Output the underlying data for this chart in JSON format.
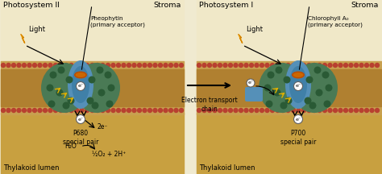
{
  "bg_color": "#f0ead0",
  "stroma_color": "#f0e8c8",
  "lumen_color": "#c8a040",
  "membrane_color": "#b08030",
  "membrane_tan": "#c8a050",
  "protein_green": "#4a7a55",
  "protein_green2": "#3d6648",
  "channel_blue": "#5590b8",
  "channel_blue2": "#4080a8",
  "dot_green": "#2a5a35",
  "red_dot": "#b84030",
  "orange_center": "#cc5500",
  "yellow_arrow": "#e0b000",
  "ps2_title": "Photosystem II",
  "ps1_title": "Photosystem I",
  "stroma_label": "Stroma",
  "lumen_label": "Thylakoid lumen",
  "light_label": "Light",
  "pheophytin_label": "Pheophytin\n(primary acceptor)",
  "chlorophyll_label": "Chlorophyll A₀\n(primary acceptor)",
  "p680_label": "P680\nspecial pair",
  "p700_label": "P700\nspecial pair",
  "water_label": "H₂O",
  "oxygen_label": "½O₂ + 2H⁺",
  "electron_transport_label": "Electron transport\nchain",
  "two_e_label": "2e⁻",
  "e_minus": "e⁻",
  "figsize": [
    4.74,
    2.16
  ],
  "dpi": 100
}
